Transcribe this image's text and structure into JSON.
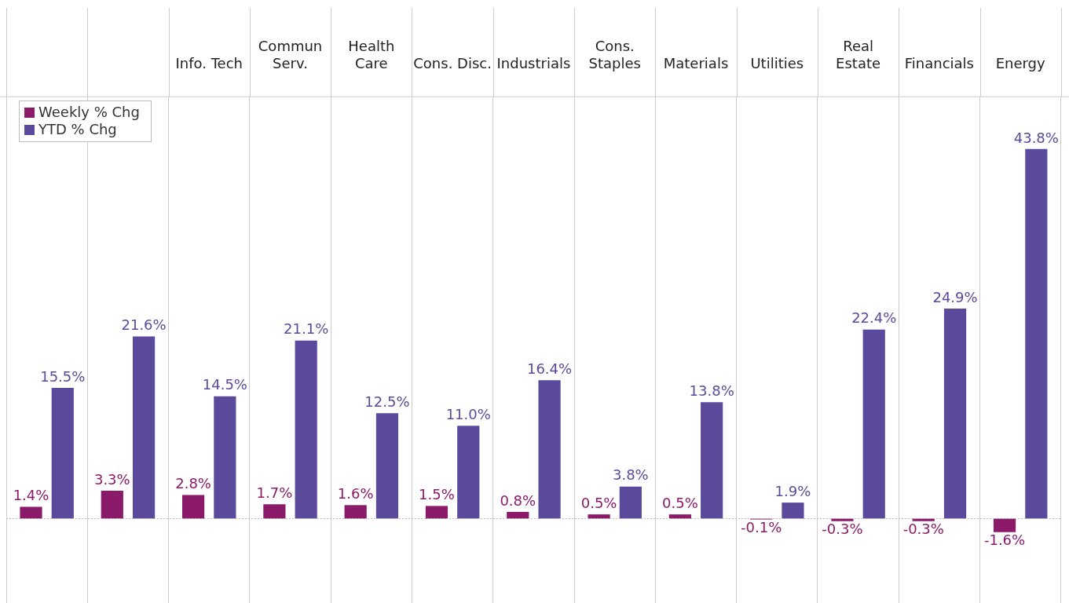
{
  "chart_data": {
    "type": "bar",
    "categories": [
      null,
      null,
      "Info. Tech",
      "Commun\nServ.",
      "Health\nCare",
      "Cons. Disc.",
      "Industrials",
      "Cons.\nStaples",
      "Materials",
      "Utilities",
      "Real\nEstate",
      "Financials",
      "Energy"
    ],
    "series": [
      {
        "name": "Weekly % Chg",
        "color": "#8c1a6a",
        "values": [
          1.4,
          3.3,
          2.8,
          1.7,
          1.6,
          1.5,
          0.8,
          0.5,
          0.5,
          -0.1,
          -0.3,
          -0.3,
          -1.6
        ],
        "value_labels": [
          "1.4%",
          "3.3%",
          "2.8%",
          "1.7%",
          "1.6%",
          "1.5%",
          "0.8%",
          "0.5%",
          "0.5%",
          "-0.1%",
          "-0.3%",
          "-0.3%",
          "-1.6%"
        ]
      },
      {
        "name": "YTD % Chg",
        "color": "#5b4a9b",
        "values": [
          15.5,
          21.6,
          14.5,
          21.1,
          12.5,
          11.0,
          16.4,
          3.8,
          13.8,
          1.9,
          22.4,
          24.9,
          43.8
        ],
        "value_labels": [
          "15.5%",
          "21.6%",
          "14.5%",
          "21.1%",
          "12.5%",
          "11.0%",
          "16.4%",
          "3.8%",
          "13.8%",
          "1.9%",
          "22.4%",
          "24.9%",
          "43.8%"
        ]
      }
    ],
    "ref_lines": [
      {
        "axis": "y",
        "value": 0,
        "color": "#bbbbbb",
        "line_style": "dotted"
      }
    ],
    "data_labels": true,
    "grid": "x",
    "legend": "top left"
  }
}
